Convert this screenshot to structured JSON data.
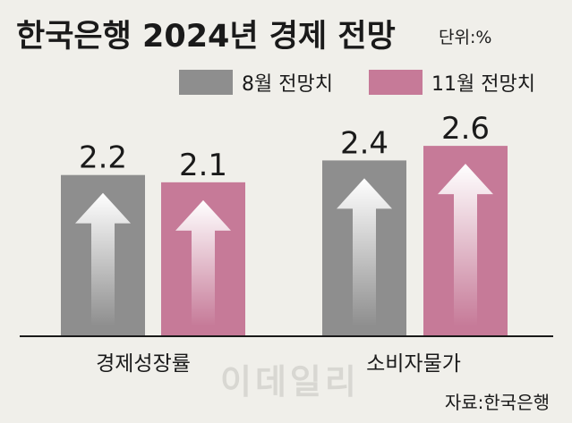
{
  "chart_data": {
    "type": "bar",
    "title": "한국은행 2024년 경제 전망",
    "unit_label": "단위:%",
    "categories": [
      "경제성장률",
      "소비자물가"
    ],
    "series": [
      {
        "name": "8월 전망치",
        "values": [
          2.2,
          2.4
        ],
        "color": "#8e8e8e"
      },
      {
        "name": "11월 전망치",
        "values": [
          2.1,
          2.6
        ],
        "color": "#c67a98"
      }
    ],
    "data_labels": [
      [
        "2.2",
        "2.1"
      ],
      [
        "2.4",
        "2.6"
      ]
    ],
    "ylim": [
      0,
      2.6
    ],
    "grid": false,
    "legend_position": "top-right",
    "source": "자료:한국은행",
    "watermark": "이데일리"
  }
}
